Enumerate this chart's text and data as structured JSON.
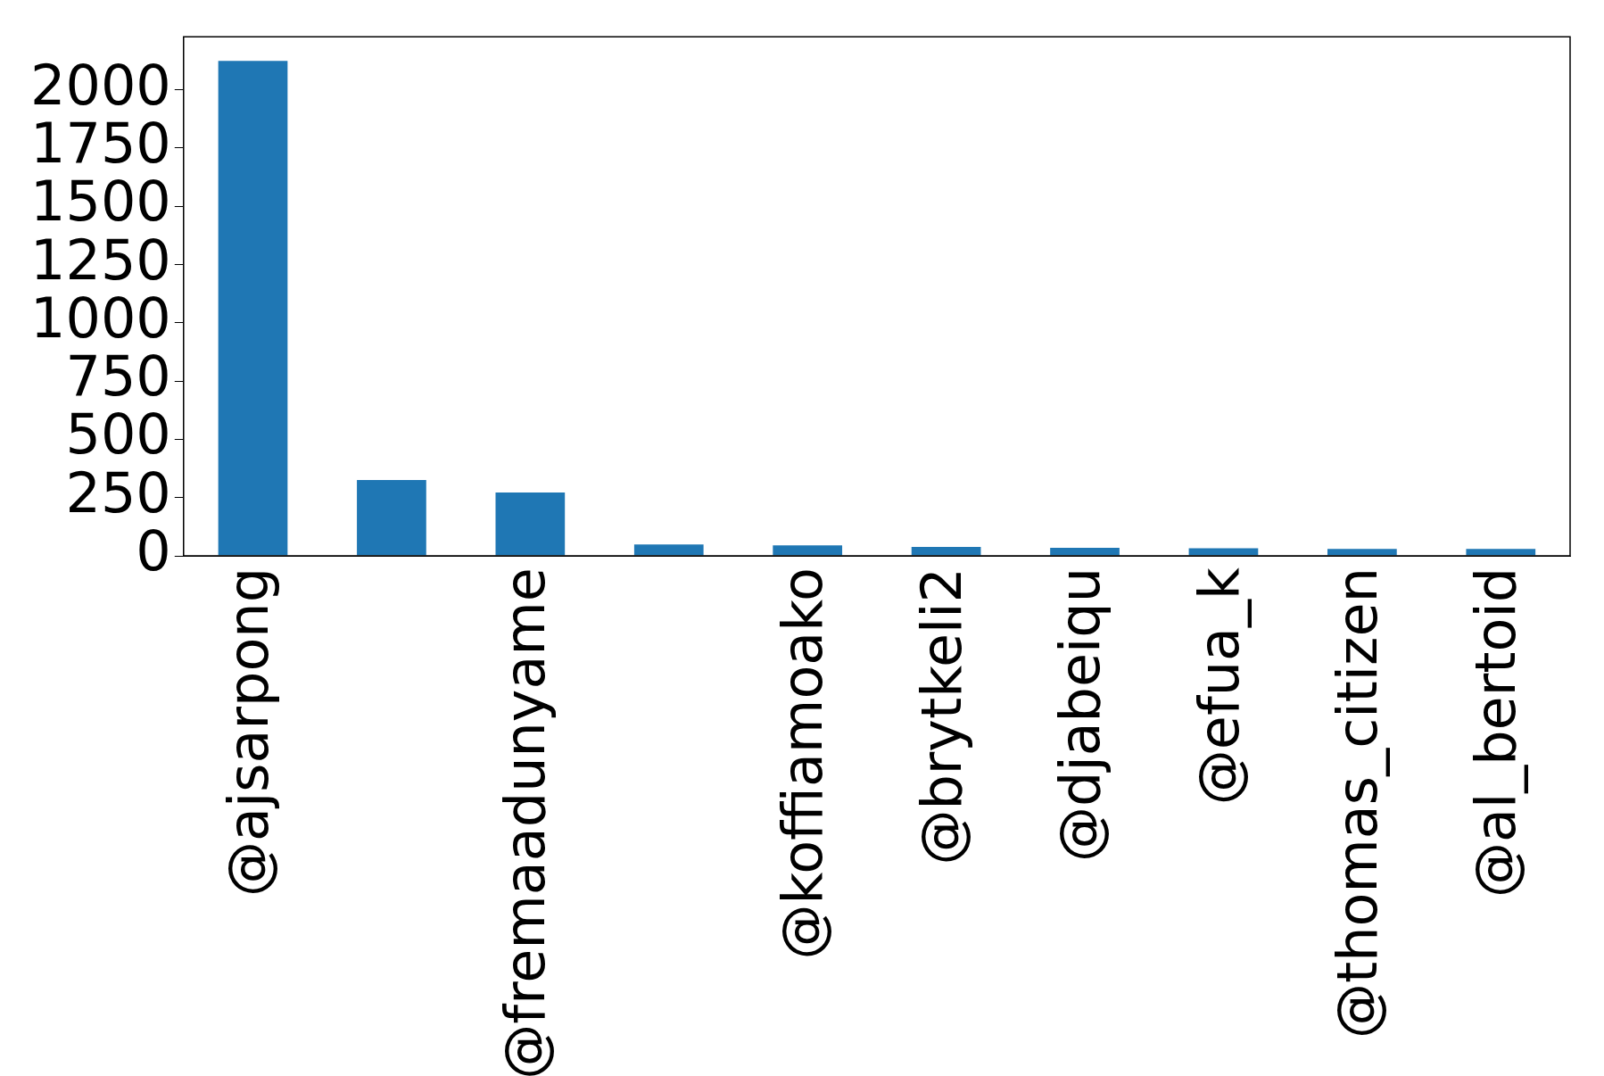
{
  "chart_data": {
    "type": "bar",
    "categories": [
      "@ajsarpong",
      null,
      "@fremaadunyame",
      null,
      "@koffiamoako",
      "@brytkeli2",
      "@djabeiqu",
      "@efua_k",
      "@thomas_citizen",
      "@al_bertoid"
    ],
    "values": [
      2123,
      325,
      272,
      49,
      45,
      38,
      34,
      33,
      30,
      30
    ],
    "color": "#1f77b4",
    "ylim": [
      0,
      2227
    ],
    "yticks": [
      0,
      250,
      500,
      750,
      1000,
      1250,
      1500,
      1750,
      2000
    ],
    "grid": false,
    "legend": false
  }
}
